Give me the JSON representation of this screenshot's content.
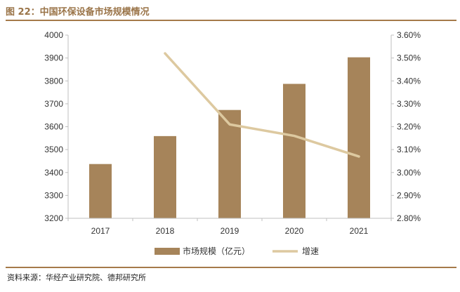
{
  "header": {
    "title": "图 22：中国环保设备市场规模情况"
  },
  "footer": {
    "source": "资料来源：华经产业研究院、德邦研究所"
  },
  "colors": {
    "bar": "#a6845a",
    "line": "#ddc9a0",
    "title": "#9a7448",
    "rule": "#a57a4a"
  },
  "chart_data": {
    "type": "bar",
    "categories": [
      "2017",
      "2018",
      "2019",
      "2020",
      "2021"
    ],
    "series": [
      {
        "name": "市场规模（亿元）",
        "type": "bar",
        "axis": "left",
        "values": [
          3437,
          3559,
          3673,
          3787,
          3903
        ]
      },
      {
        "name": "增速",
        "type": "line",
        "axis": "right",
        "values": [
          null,
          3.52,
          3.21,
          3.16,
          3.07
        ]
      }
    ],
    "y_left": {
      "min": 3200,
      "max": 4000,
      "step": 100,
      "ticks": [
        "3200",
        "3300",
        "3400",
        "3500",
        "3600",
        "3700",
        "3800",
        "3900",
        "4000"
      ]
    },
    "y_right": {
      "min": 2.8,
      "max": 3.6,
      "step": 0.1,
      "ticks": [
        "2.80%",
        "2.90%",
        "3.00%",
        "3.10%",
        "3.20%",
        "3.30%",
        "3.40%",
        "3.50%",
        "3.60%"
      ]
    },
    "grid": false,
    "legend": "bottom"
  }
}
